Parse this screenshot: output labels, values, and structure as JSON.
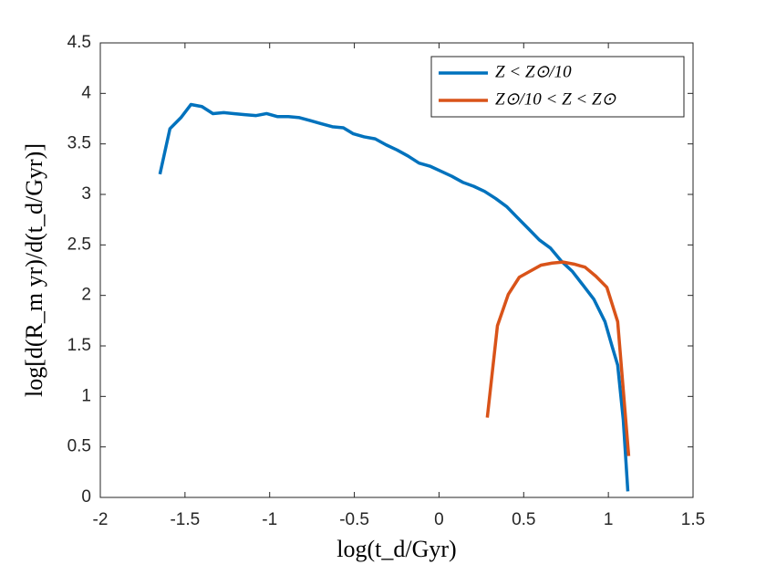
{
  "chart_data": {
    "type": "line",
    "xlabel": "log(t_d/Gyr)",
    "ylabel": "log[d(R_m yr)/d(t_d/Gyr)]",
    "xlim": [
      -2,
      1.5
    ],
    "xticks": [
      -2,
      -1.5,
      -1,
      -0.5,
      0,
      0.5,
      1,
      1.5
    ],
    "ylim": [
      0,
      4.5
    ],
    "yticks": [
      0,
      0.5,
      1,
      1.5,
      2,
      2.5,
      3,
      3.5,
      4,
      4.5
    ],
    "legend": "upper right",
    "series": [
      {
        "name": "Z < Z⊙/10",
        "color": "#0072BD",
        "x": [
          -1.648,
          -1.589,
          -1.524,
          -1.465,
          -1.4,
          -1.335,
          -1.271,
          -1.212,
          -1.147,
          -1.082,
          -1.018,
          -0.953,
          -0.889,
          -0.824,
          -0.759,
          -0.695,
          -0.63,
          -0.565,
          -0.506,
          -0.442,
          -0.377,
          -0.312,
          -0.248,
          -0.183,
          -0.118,
          -0.054,
          0.011,
          0.075,
          0.14,
          0.205,
          0.269,
          0.334,
          0.399,
          0.463,
          0.528,
          0.592,
          0.657,
          0.722,
          0.786,
          0.851,
          0.915,
          0.98,
          1.023,
          1.055,
          1.088,
          1.115
        ],
        "values": [
          3.2,
          3.65,
          3.76,
          3.89,
          3.87,
          3.8,
          3.81,
          3.8,
          3.79,
          3.78,
          3.8,
          3.77,
          3.77,
          3.76,
          3.73,
          3.7,
          3.67,
          3.66,
          3.6,
          3.57,
          3.55,
          3.49,
          3.44,
          3.38,
          3.31,
          3.28,
          3.23,
          3.18,
          3.12,
          3.08,
          3.03,
          2.96,
          2.88,
          2.77,
          2.66,
          2.55,
          2.47,
          2.34,
          2.24,
          2.1,
          1.96,
          1.74,
          1.49,
          1.31,
          0.77,
          0.06
        ]
      },
      {
        "name": "Z⊙/10 < Z < Z⊙",
        "color": "#D95319",
        "x": [
          0.285,
          0.345,
          0.409,
          0.474,
          0.538,
          0.603,
          0.668,
          0.732,
          0.797,
          0.862,
          0.926,
          0.991,
          1.055,
          1.12
        ],
        "values": [
          0.79,
          1.7,
          2.01,
          2.18,
          2.24,
          2.3,
          2.32,
          2.33,
          2.31,
          2.28,
          2.19,
          2.08,
          1.74,
          0.41
        ]
      }
    ]
  }
}
